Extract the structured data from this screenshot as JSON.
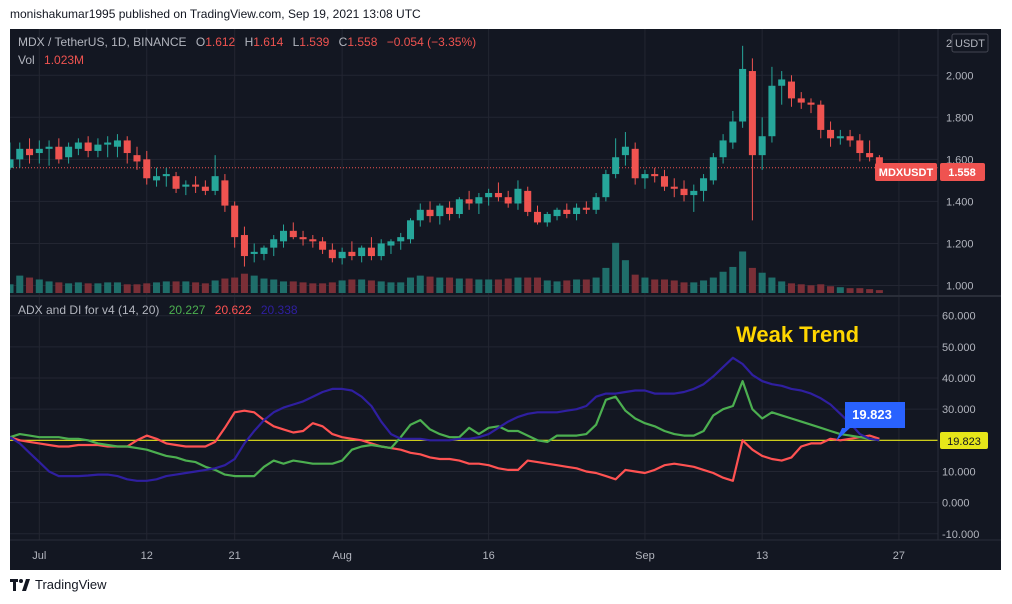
{
  "published": "monishakumar1995 published on TradingView.com, Sep 19, 2021 13:08 UTC",
  "footer": {
    "brand": "TradingView"
  },
  "colors": {
    "bg": "#131722",
    "grid": "#232632",
    "text": "#b2b5be",
    "up": "#26a69a",
    "down": "#ef5350",
    "up_vol": "#1f6e6a",
    "down_vol": "#7a2f37",
    "adx": "#2f1fa0",
    "di_plus": "#4caf50",
    "di_minus": "#ff5252",
    "threshold": "#e6e619",
    "label_box": "#ef5350",
    "callout": "#2962ff",
    "annotation": "#ffd600"
  },
  "chart_data": [
    {
      "type": "candlestick",
      "symbol": "MDX / TetherUS, 1D, BINANCE",
      "legend": {
        "o_label": "O",
        "o": "1.612",
        "h_label": "H",
        "h": "1.614",
        "l_label": "L",
        "l": "1.539",
        "c_label": "C",
        "c": "1.558",
        "change": "−0.054 (−3.35%)",
        "vol_label": "Vol",
        "vol": "1.023M"
      },
      "currency_badge": "USDT",
      "price_label": {
        "ticker": "MDXUSDT",
        "value": "1.558"
      },
      "ylim": [
        0.95,
        2.22
      ],
      "y_ticks": [
        "1.000",
        "1.200",
        "1.400",
        "1.600",
        "1.800",
        "2.000",
        "2"
      ],
      "x_ticks": [
        "Jul",
        "12",
        "21",
        "Aug",
        "16",
        "Sep",
        "13",
        "27"
      ],
      "x_tick_dates": [
        "2021-07-01",
        "2021-07-12",
        "2021-07-21",
        "2021-08-01",
        "2021-08-16",
        "2021-09-01",
        "2021-09-13",
        "2021-09-27"
      ],
      "x_range": [
        "2021-06-28",
        "2021-10-01"
      ],
      "first_date": "2021-06-28",
      "ohlc": [
        [
          1.56,
          1.68,
          1.55,
          1.6
        ],
        [
          1.6,
          1.68,
          1.56,
          1.65
        ],
        [
          1.65,
          1.7,
          1.58,
          1.62
        ],
        [
          1.63,
          1.69,
          1.58,
          1.65
        ],
        [
          1.65,
          1.69,
          1.57,
          1.66
        ],
        [
          1.66,
          1.7,
          1.58,
          1.6
        ],
        [
          1.61,
          1.68,
          1.58,
          1.66
        ],
        [
          1.65,
          1.7,
          1.62,
          1.68
        ],
        [
          1.68,
          1.71,
          1.61,
          1.64
        ],
        [
          1.64,
          1.7,
          1.61,
          1.67
        ],
        [
          1.67,
          1.71,
          1.61,
          1.68
        ],
        [
          1.66,
          1.72,
          1.61,
          1.69
        ],
        [
          1.69,
          1.71,
          1.58,
          1.63
        ],
        [
          1.62,
          1.66,
          1.55,
          1.59
        ],
        [
          1.6,
          1.64,
          1.48,
          1.51
        ],
        [
          1.5,
          1.56,
          1.47,
          1.52
        ],
        [
          1.52,
          1.56,
          1.47,
          1.53
        ],
        [
          1.52,
          1.54,
          1.44,
          1.46
        ],
        [
          1.47,
          1.5,
          1.43,
          1.48
        ],
        [
          1.48,
          1.52,
          1.44,
          1.47
        ],
        [
          1.47,
          1.5,
          1.43,
          1.45
        ],
        [
          1.45,
          1.62,
          1.43,
          1.52
        ],
        [
          1.5,
          1.53,
          1.35,
          1.38
        ],
        [
          1.38,
          1.4,
          1.18,
          1.23
        ],
        [
          1.24,
          1.28,
          1.09,
          1.14
        ],
        [
          1.15,
          1.2,
          1.11,
          1.16
        ],
        [
          1.15,
          1.19,
          1.12,
          1.18
        ],
        [
          1.18,
          1.24,
          1.14,
          1.22
        ],
        [
          1.21,
          1.29,
          1.18,
          1.26
        ],
        [
          1.26,
          1.3,
          1.22,
          1.23
        ],
        [
          1.23,
          1.26,
          1.19,
          1.22
        ],
        [
          1.22,
          1.24,
          1.18,
          1.21
        ],
        [
          1.21,
          1.23,
          1.15,
          1.17
        ],
        [
          1.17,
          1.2,
          1.11,
          1.13
        ],
        [
          1.13,
          1.18,
          1.1,
          1.16
        ],
        [
          1.16,
          1.21,
          1.12,
          1.14
        ],
        [
          1.14,
          1.19,
          1.11,
          1.18
        ],
        [
          1.18,
          1.23,
          1.12,
          1.14
        ],
        [
          1.14,
          1.22,
          1.12,
          1.2
        ],
        [
          1.19,
          1.22,
          1.15,
          1.21
        ],
        [
          1.21,
          1.25,
          1.17,
          1.23
        ],
        [
          1.22,
          1.32,
          1.2,
          1.31
        ],
        [
          1.31,
          1.39,
          1.28,
          1.36
        ],
        [
          1.36,
          1.4,
          1.3,
          1.33
        ],
        [
          1.33,
          1.39,
          1.29,
          1.38
        ],
        [
          1.37,
          1.4,
          1.31,
          1.34
        ],
        [
          1.34,
          1.42,
          1.32,
          1.41
        ],
        [
          1.41,
          1.45,
          1.36,
          1.39
        ],
        [
          1.39,
          1.44,
          1.34,
          1.42
        ],
        [
          1.42,
          1.46,
          1.38,
          1.44
        ],
        [
          1.44,
          1.49,
          1.4,
          1.42
        ],
        [
          1.42,
          1.45,
          1.37,
          1.39
        ],
        [
          1.39,
          1.5,
          1.36,
          1.46
        ],
        [
          1.45,
          1.47,
          1.33,
          1.35
        ],
        [
          1.35,
          1.38,
          1.29,
          1.3
        ],
        [
          1.3,
          1.35,
          1.28,
          1.34
        ],
        [
          1.33,
          1.37,
          1.31,
          1.36
        ],
        [
          1.36,
          1.39,
          1.32,
          1.34
        ],
        [
          1.34,
          1.39,
          1.31,
          1.37
        ],
        [
          1.37,
          1.4,
          1.34,
          1.36
        ],
        [
          1.36,
          1.44,
          1.34,
          1.42
        ],
        [
          1.42,
          1.55,
          1.4,
          1.53
        ],
        [
          1.53,
          1.7,
          1.51,
          1.61
        ],
        [
          1.62,
          1.73,
          1.57,
          1.66
        ],
        [
          1.65,
          1.68,
          1.48,
          1.51
        ],
        [
          1.51,
          1.55,
          1.46,
          1.53
        ],
        [
          1.53,
          1.56,
          1.49,
          1.52
        ],
        [
          1.52,
          1.55,
          1.45,
          1.47
        ],
        [
          1.47,
          1.51,
          1.42,
          1.46
        ],
        [
          1.46,
          1.5,
          1.4,
          1.43
        ],
        [
          1.43,
          1.48,
          1.35,
          1.45
        ],
        [
          1.45,
          1.53,
          1.4,
          1.51
        ],
        [
          1.5,
          1.63,
          1.48,
          1.61
        ],
        [
          1.61,
          1.72,
          1.58,
          1.69
        ],
        [
          1.68,
          1.83,
          1.65,
          1.78
        ],
        [
          1.78,
          2.14,
          1.75,
          2.03
        ],
        [
          2.02,
          2.08,
          1.31,
          1.62
        ],
        [
          1.62,
          1.8,
          1.55,
          1.71
        ],
        [
          1.71,
          2.04,
          1.68,
          1.95
        ],
        [
          1.95,
          2.02,
          1.86,
          1.98
        ],
        [
          1.97,
          2.0,
          1.85,
          1.89
        ],
        [
          1.89,
          1.92,
          1.84,
          1.87
        ],
        [
          1.87,
          1.89,
          1.82,
          1.86
        ],
        [
          1.86,
          1.88,
          1.7,
          1.74
        ],
        [
          1.74,
          1.78,
          1.66,
          1.7
        ],
        [
          1.7,
          1.74,
          1.67,
          1.71
        ],
        [
          1.71,
          1.74,
          1.66,
          1.69
        ],
        [
          1.69,
          1.72,
          1.59,
          1.63
        ],
        [
          1.63,
          1.69,
          1.59,
          1.61
        ],
        [
          1.61,
          1.62,
          1.54,
          1.56
        ]
      ],
      "volume": [
        0.9,
        1.8,
        1.6,
        1.4,
        1.2,
        1.1,
        1.0,
        1.1,
        1.0,
        1.0,
        1.1,
        1.1,
        0.9,
        0.9,
        1.0,
        1.1,
        1.2,
        1.2,
        1.2,
        1.1,
        1.0,
        1.3,
        1.5,
        1.6,
        2.0,
        1.8,
        1.5,
        1.4,
        1.2,
        1.2,
        1.1,
        1.0,
        1.0,
        1.1,
        1.3,
        1.4,
        1.4,
        1.3,
        1.2,
        1.1,
        1.1,
        1.6,
        1.8,
        1.7,
        1.6,
        1.6,
        1.5,
        1.5,
        1.4,
        1.4,
        1.4,
        1.5,
        1.6,
        1.6,
        1.6,
        1.3,
        1.2,
        1.3,
        1.4,
        1.4,
        1.6,
        2.6,
        5.2,
        3.4,
        1.9,
        1.6,
        1.4,
        1.4,
        1.3,
        1.1,
        1.1,
        1.3,
        1.6,
        2.2,
        2.7,
        4.3,
        2.6,
        2.1,
        1.6,
        1.2,
        1.0,
        0.9,
        0.8,
        0.9,
        0.7,
        0.6,
        0.5,
        0.5,
        0.4,
        0.3
      ],
      "volume_max": 5.8
    },
    {
      "type": "line",
      "title": "ADX and DI for v4 (14, 20)",
      "legend_values": {
        "di_plus": "20.227",
        "di_minus": "20.622",
        "adx": "20.338"
      },
      "ylim": [
        -12,
        66
      ],
      "y_ticks": [
        "-10.000",
        "0.000",
        "10.000",
        "20.000",
        "30.000",
        "40.000",
        "50.000",
        "60.000"
      ],
      "threshold": 20,
      "threshold_label": "19.823",
      "callout_label": "19.823",
      "annotation": "Weak Trend",
      "series": [
        {
          "key": "adx",
          "values": [
            21,
            19,
            16,
            13,
            10,
            8.5,
            8.5,
            8.5,
            8.7,
            9,
            9,
            8.5,
            7.5,
            7,
            7,
            7.5,
            8.5,
            9,
            9.5,
            10,
            10.5,
            11,
            12,
            14,
            19,
            23,
            26.5,
            29,
            30.5,
            31.5,
            32.5,
            34,
            35.5,
            36.5,
            36.5,
            36,
            34,
            31,
            26,
            22,
            20.5,
            20.5,
            20.5,
            20,
            20,
            20,
            20.5,
            20.5,
            21,
            22,
            24,
            26,
            27.5,
            28.5,
            29,
            29,
            29,
            29.5,
            30,
            31,
            34,
            35,
            35,
            35.5,
            36,
            36,
            35,
            35,
            35,
            35.5,
            36.5,
            38,
            40.5,
            43.5,
            46.5,
            44.5,
            41,
            39,
            38,
            37.5,
            36.5,
            36,
            35,
            33.5,
            31.5,
            28.5,
            25.5,
            22,
            20.5,
            20
          ]
        },
        {
          "key": "di_plus",
          "values": [
            21,
            22,
            21.5,
            21,
            21,
            21,
            20.5,
            20.5,
            20,
            19,
            18.5,
            18,
            18,
            17.5,
            17,
            16,
            15,
            14.5,
            13.5,
            13,
            11.5,
            10.5,
            9,
            8.5,
            8.5,
            8.5,
            11.5,
            13.5,
            12.5,
            13.5,
            13,
            12.5,
            12.5,
            12.5,
            13.5,
            17,
            18,
            18.5,
            18,
            17.5,
            21,
            25,
            26.5,
            23.5,
            22,
            21,
            21,
            24,
            22,
            24,
            24.5,
            23,
            23,
            21.5,
            20,
            19.5,
            21.5,
            21.5,
            21.5,
            22,
            25,
            33,
            34,
            29.5,
            27,
            25.5,
            24.5,
            23,
            22,
            21.5,
            21.5,
            23,
            28,
            30,
            31,
            39,
            30,
            27,
            29,
            28,
            27,
            26,
            25,
            24,
            23,
            22,
            21.5,
            21,
            20.5,
            20
          ]
        },
        {
          "key": "di_minus",
          "values": [
            21,
            20,
            19.5,
            19,
            18.5,
            18,
            18,
            18.5,
            18.5,
            18.5,
            18,
            18,
            18,
            20,
            21.5,
            20.5,
            19,
            18.5,
            18,
            18,
            18,
            19.5,
            24,
            29,
            29.5,
            29,
            26.5,
            24.5,
            23.5,
            22.5,
            23,
            25.5,
            24.5,
            22,
            21,
            20.5,
            20,
            19,
            18,
            17.5,
            17,
            16,
            15.5,
            14.5,
            14,
            14,
            13.5,
            12.5,
            12.5,
            12,
            11,
            10.5,
            10.5,
            13.5,
            13,
            12.5,
            12,
            11.5,
            11,
            10,
            9.5,
            8.5,
            7.5,
            10.5,
            10,
            9.5,
            10.5,
            12,
            12.5,
            12,
            11.5,
            10.5,
            9.5,
            8,
            7,
            20,
            17,
            15,
            14,
            13.5,
            14.5,
            18,
            19,
            19,
            20.5,
            20,
            20.5,
            21,
            21.5,
            20.5
          ]
        }
      ]
    }
  ]
}
